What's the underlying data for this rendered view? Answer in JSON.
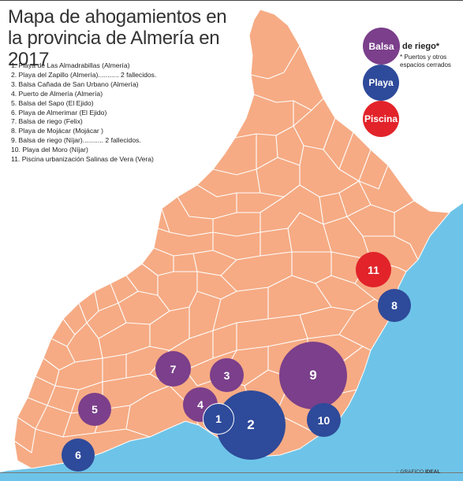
{
  "title": "Mapa de ahogamientos en la provincia de Almería en 2017",
  "list": [
    "1. Playa de Las Almadrabillas (Almería)",
    "2. Playa del Zapillo (Almería)........... 2 fallecidos.",
    "3. Balsa Cañada de San Urbano (Almería)",
    "4. Puerto de Almería (Almería)",
    "5. Balsa del Sapo (El Ejido)",
    "6. Playa de Almerimar (El Ejido)",
    "7. Balsa de riego (Felix)",
    "8. Playa de Mojácar (Mojácar )",
    "9. Balsa de riego (Níjar)........... 2 fallecidos.",
    "10. Playa del Moro (Níjar)",
    "11. Piscina urbanización Salinas de Vera (Vera)"
  ],
  "legend": {
    "balsa": {
      "label": "Balsa",
      "extra": "de riego*",
      "color": "#7b3f8b"
    },
    "note": "* Puertos y otros espacios cerrados",
    "playa": {
      "label": "Playa",
      "color": "#2e4a9a"
    },
    "piscina": {
      "label": "Piscina",
      "color": "#e2232a"
    }
  },
  "markers": [
    {
      "label": "9",
      "type": "balsa"
    },
    {
      "label": "2",
      "type": "playa"
    },
    {
      "label": "11",
      "type": "piscina"
    },
    {
      "label": "8",
      "type": "playa"
    },
    {
      "label": "7",
      "type": "balsa"
    },
    {
      "label": "3",
      "type": "balsa"
    },
    {
      "label": "4",
      "type": "balsa"
    },
    {
      "label": "5",
      "type": "balsa"
    },
    {
      "label": "1",
      "type": "playa"
    },
    {
      "label": "10",
      "type": "playa"
    },
    {
      "label": "6",
      "type": "playa"
    }
  ],
  "colors": {
    "land": "#f6ab84",
    "sea": "#6ec4e8",
    "border": "#ffffff"
  },
  "credit": {
    "prefix": ":: GRAFICO ",
    "brand": "IDEAL"
  }
}
